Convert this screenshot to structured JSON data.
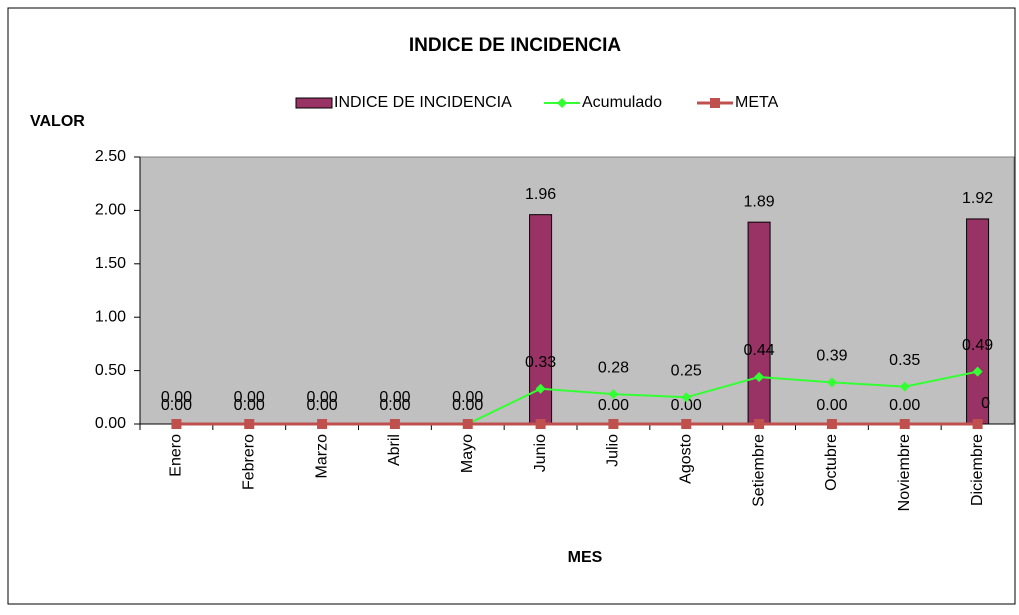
{
  "chart_data": {
    "type": "bar",
    "title": "INDICE DE INCIDENCIA",
    "y_label": "VALOR",
    "x_label": "MES",
    "categories": [
      "Enero",
      "Febrero",
      "Marzo",
      "Abril",
      "Mayo",
      "Junio",
      "Julio",
      "Agosto",
      "Setiembre",
      "Octubre",
      "Noviembre",
      "Diciembre"
    ],
    "series": [
      {
        "name": "INDICE DE INCIDENCIA",
        "type": "bar",
        "color": "#993366",
        "values": [
          0,
          0,
          0,
          0,
          0,
          1.96,
          0,
          0,
          1.89,
          0,
          0,
          1.92
        ],
        "value_labels": [
          "0.00",
          "0.00",
          "0.00",
          "0.00",
          "0.00",
          "1.96",
          "0.00",
          "0.00",
          "1.89",
          "0.00",
          "0.00",
          "1.92"
        ]
      },
      {
        "name": "Acumulado",
        "type": "line",
        "color": "#33ff33",
        "values": [
          0,
          0,
          0,
          0,
          0,
          0.33,
          0.28,
          0.25,
          0.44,
          0.39,
          0.35,
          0.49
        ],
        "value_labels": [
          "0.00",
          "0.00",
          "0.00",
          "0.00",
          "0.00",
          "0.33",
          "0.28",
          "0.25",
          "0.44",
          "0.39",
          "0.35",
          "0.49"
        ]
      },
      {
        "name": "META",
        "type": "line",
        "color": "#c0504d",
        "values": [
          0,
          0,
          0,
          0,
          0,
          0,
          0,
          0,
          0,
          0,
          0,
          0
        ],
        "value_labels": [
          null,
          null,
          null,
          null,
          null,
          null,
          null,
          null,
          null,
          null,
          null,
          "0"
        ]
      }
    ],
    "ylim": [
      0,
      2.5
    ],
    "yticks": [
      {
        "value": 0,
        "label": "0.00"
      },
      {
        "value": 0.5,
        "label": "0.50"
      },
      {
        "value": 1,
        "label": "1.00"
      },
      {
        "value": 1.5,
        "label": "1.50"
      },
      {
        "value": 2,
        "label": "2.00"
      },
      {
        "value": 2.5,
        "label": "2.50"
      }
    ]
  }
}
